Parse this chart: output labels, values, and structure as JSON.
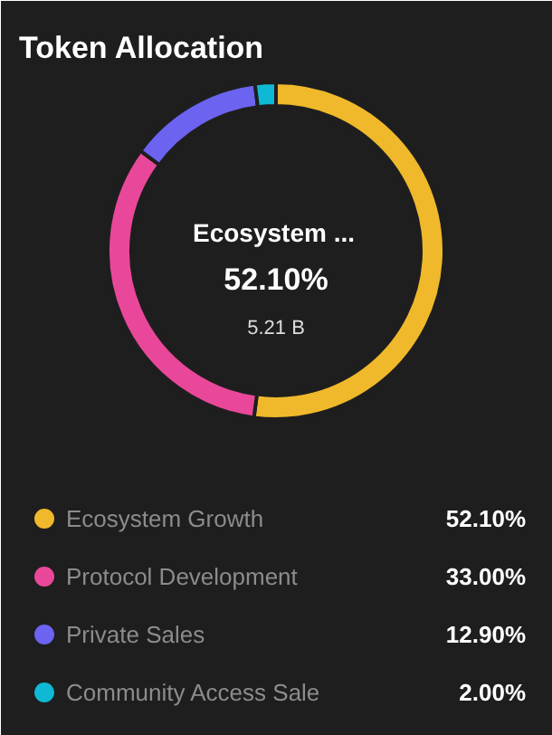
{
  "chart_data": {
    "type": "donut",
    "title": "Token Allocation",
    "categories": [
      "Ecosystem Growth",
      "Protocol Development",
      "Private Sales",
      "Community Access Sale"
    ],
    "values": [
      52.1,
      33.0,
      12.9,
      2.0
    ],
    "colors": [
      "#f0b92b",
      "#e9489a",
      "#6c63f0",
      "#0fb8d4"
    ],
    "value_labels": [
      "52.10%",
      "33.00%",
      "12.90%",
      "2.00%"
    ],
    "annotations": [
      "Ecosystem ...",
      "52.10%",
      "5.21 B"
    ],
    "legend": "bottom"
  }
}
